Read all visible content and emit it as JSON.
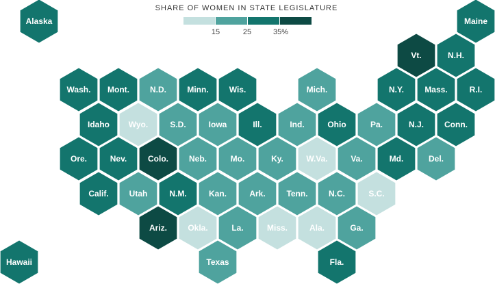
{
  "legend": {
    "title": "SHARE OF WOMEN IN STATE LEGISLATURE",
    "colors": [
      "#c4e0df",
      "#4fa39e",
      "#13756d",
      "#0d4a44"
    ],
    "ticks": [
      "15",
      "25",
      "35%"
    ]
  },
  "colors": {
    "very_light": "#c4e0df",
    "medium": "#4fa39e",
    "dark": "#13756d",
    "very_dark": "#0d4a44"
  },
  "states": [
    {
      "label": "Alaska",
      "shade": "dark"
    },
    {
      "label": "Maine",
      "shade": "dark"
    },
    {
      "label": "Vt.",
      "shade": "very_dark"
    },
    {
      "label": "N.H.",
      "shade": "dark"
    },
    {
      "label": "Wash.",
      "shade": "dark"
    },
    {
      "label": "Mont.",
      "shade": "dark"
    },
    {
      "label": "N.D.",
      "shade": "medium"
    },
    {
      "label": "Minn.",
      "shade": "dark"
    },
    {
      "label": "Wis.",
      "shade": "dark"
    },
    {
      "label": "Mich.",
      "shade": "medium"
    },
    {
      "label": "N.Y.",
      "shade": "dark"
    },
    {
      "label": "Mass.",
      "shade": "dark"
    },
    {
      "label": "R.I.",
      "shade": "dark"
    },
    {
      "label": "Idaho",
      "shade": "dark"
    },
    {
      "label": "Wyo.",
      "shade": "very_light"
    },
    {
      "label": "S.D.",
      "shade": "medium"
    },
    {
      "label": "Iowa",
      "shade": "medium"
    },
    {
      "label": "Ill.",
      "shade": "dark"
    },
    {
      "label": "Ind.",
      "shade": "medium"
    },
    {
      "label": "Ohio",
      "shade": "dark"
    },
    {
      "label": "Pa.",
      "shade": "medium"
    },
    {
      "label": "N.J.",
      "shade": "dark"
    },
    {
      "label": "Conn.",
      "shade": "dark"
    },
    {
      "label": "Ore.",
      "shade": "dark"
    },
    {
      "label": "Nev.",
      "shade": "dark"
    },
    {
      "label": "Colo.",
      "shade": "very_dark"
    },
    {
      "label": "Neb.",
      "shade": "medium"
    },
    {
      "label": "Mo.",
      "shade": "medium"
    },
    {
      "label": "Ky.",
      "shade": "medium"
    },
    {
      "label": "W.Va.",
      "shade": "very_light"
    },
    {
      "label": "Va.",
      "shade": "medium"
    },
    {
      "label": "Md.",
      "shade": "dark"
    },
    {
      "label": "Del.",
      "shade": "medium"
    },
    {
      "label": "Calif.",
      "shade": "dark"
    },
    {
      "label": "Utah",
      "shade": "medium"
    },
    {
      "label": "N.M.",
      "shade": "dark"
    },
    {
      "label": "Kan.",
      "shade": "medium"
    },
    {
      "label": "Ark.",
      "shade": "medium"
    },
    {
      "label": "Tenn.",
      "shade": "medium"
    },
    {
      "label": "N.C.",
      "shade": "medium"
    },
    {
      "label": "S.C.",
      "shade": "very_light"
    },
    {
      "label": "Ariz.",
      "shade": "very_dark"
    },
    {
      "label": "Okla.",
      "shade": "very_light"
    },
    {
      "label": "La.",
      "shade": "medium"
    },
    {
      "label": "Miss.",
      "shade": "very_light"
    },
    {
      "label": "Ala.",
      "shade": "very_light"
    },
    {
      "label": "Ga.",
      "shade": "medium"
    },
    {
      "label": "Hawaii",
      "shade": "dark"
    },
    {
      "label": "Texas",
      "shade": "medium"
    },
    {
      "label": "Fla.",
      "shade": "dark"
    }
  ]
}
